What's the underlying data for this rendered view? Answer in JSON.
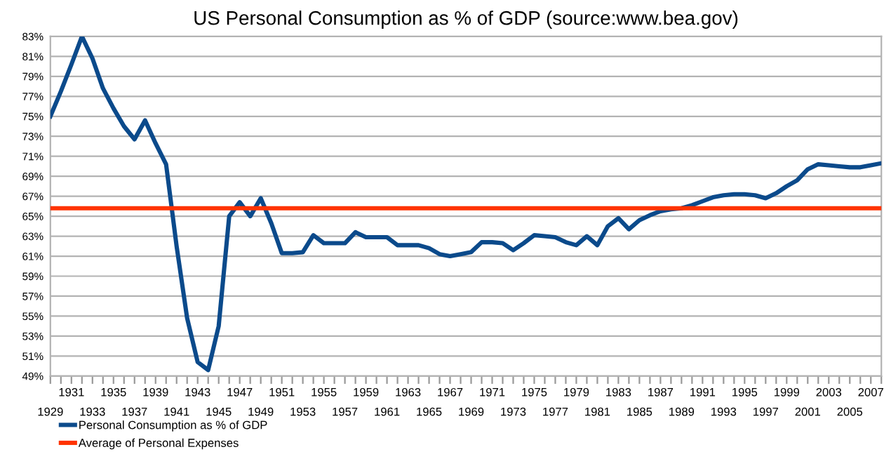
{
  "chart_data": {
    "type": "line",
    "title": "US Personal Consumption as % of GDP (source:www.bea.gov)",
    "categories": [
      "1929",
      null,
      "1931",
      null,
      "1933",
      null,
      "1935",
      null,
      "1937",
      null,
      "1939",
      null,
      "1941",
      null,
      "1943",
      null,
      "1945",
      null,
      "1947",
      null,
      "1949",
      null,
      "1951",
      null,
      "1953",
      null,
      "1955",
      null,
      "1957",
      null,
      "1959",
      null,
      "1961",
      null,
      "1963",
      null,
      "1965",
      null,
      "1967",
      null,
      "1969",
      null,
      "1971",
      null,
      "1973",
      null,
      "1975",
      null,
      "1977",
      null,
      "1979",
      null,
      "1981",
      null,
      "1983",
      null,
      "1985",
      null,
      "1987",
      null,
      "1989",
      null,
      "1991",
      null,
      "1993",
      null,
      "1995",
      null,
      "1997",
      null,
      "1999",
      null,
      "2001",
      null,
      "2003",
      null,
      "2005",
      null,
      "2007",
      null
    ],
    "series": [
      {
        "name": "Personal Consumption as % of GDP",
        "color": "#0b4a8b",
        "values": [
          75.0,
          77.5,
          80.2,
          83.0,
          80.8,
          77.8,
          75.8,
          74.0,
          72.7,
          74.6,
          72.3,
          70.2,
          62.0,
          54.8,
          50.4,
          49.6,
          54.0,
          65.0,
          66.4,
          65.0,
          66.8,
          64.3,
          61.3,
          61.3,
          61.4,
          63.1,
          62.3,
          62.3,
          62.3,
          63.4,
          62.9,
          62.9,
          62.9,
          62.1,
          62.1,
          62.1,
          61.8,
          61.2,
          61.0,
          61.2,
          61.4,
          62.4,
          62.4,
          62.3,
          61.6,
          62.3,
          63.1,
          63.0,
          62.9,
          62.4,
          62.1,
          63.0,
          62.1,
          64.0,
          64.8,
          63.7,
          64.6,
          65.1,
          65.5,
          65.7,
          65.8,
          66.1,
          66.5,
          66.9,
          67.1,
          67.2,
          67.2,
          67.1,
          66.8,
          67.3,
          68.0,
          68.6,
          69.7,
          70.2,
          70.1,
          70.0,
          69.9,
          69.9,
          70.1,
          70.3
        ]
      },
      {
        "name": "Average of Personal Expenses",
        "color": "#ff3300",
        "values": [
          65.8,
          65.8,
          65.8,
          65.8,
          65.8,
          65.8,
          65.8,
          65.8,
          65.8,
          65.8,
          65.8,
          65.8,
          65.8,
          65.8,
          65.8,
          65.8,
          65.8,
          65.8,
          65.8,
          65.8,
          65.8,
          65.8,
          65.8,
          65.8,
          65.8,
          65.8,
          65.8,
          65.8,
          65.8,
          65.8,
          65.8,
          65.8,
          65.8,
          65.8,
          65.8,
          65.8,
          65.8,
          65.8,
          65.8,
          65.8,
          65.8,
          65.8,
          65.8,
          65.8,
          65.8,
          65.8,
          65.8,
          65.8,
          65.8,
          65.8,
          65.8,
          65.8,
          65.8,
          65.8,
          65.8,
          65.8,
          65.8,
          65.8,
          65.8,
          65.8,
          65.8,
          65.8,
          65.8,
          65.8,
          65.8,
          65.8,
          65.8,
          65.8,
          65.8,
          65.8,
          65.8,
          65.8,
          65.8,
          65.8,
          65.8,
          65.8,
          65.8,
          65.8,
          65.8,
          65.8
        ]
      }
    ],
    "ylim": [
      49,
      83
    ],
    "yticks": [
      {
        "value": 49,
        "label": "49%"
      },
      {
        "value": 51,
        "label": "51%"
      },
      {
        "value": 53,
        "label": "53%"
      },
      {
        "value": 55,
        "label": "55%"
      },
      {
        "value": 57,
        "label": "57%"
      },
      {
        "value": 59,
        "label": "59%"
      },
      {
        "value": 61,
        "label": "61%"
      },
      {
        "value": 63,
        "label": "63%"
      },
      {
        "value": 65,
        "label": "65%"
      },
      {
        "value": 67,
        "label": "67%"
      },
      {
        "value": 69,
        "label": "69%"
      },
      {
        "value": 71,
        "label": "71%"
      },
      {
        "value": 73,
        "label": "73%"
      },
      {
        "value": 75,
        "label": "75%"
      },
      {
        "value": 77,
        "label": "77%"
      },
      {
        "value": 79,
        "label": "79%"
      },
      {
        "value": 81,
        "label": "81%"
      },
      {
        "value": 83,
        "label": "83%"
      }
    ],
    "grid": "y",
    "legend": "bottom left",
    "marker": "none",
    "line_style": "solid"
  }
}
